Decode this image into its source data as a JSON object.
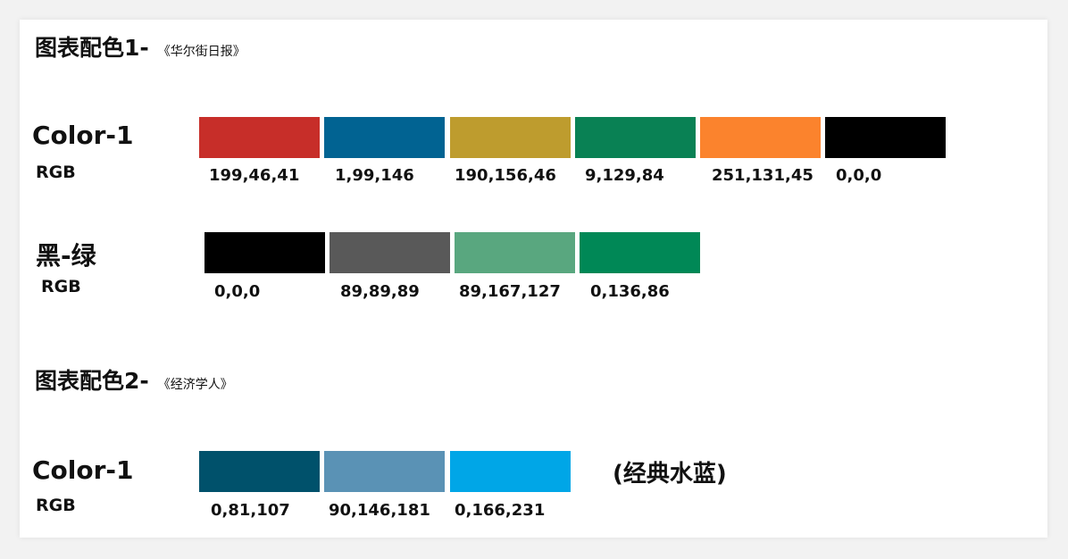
{
  "sections": [
    {
      "title": "图表配色1-",
      "source": "《华尔街日报》",
      "rows": [
        {
          "label": "Color-1",
          "rgb_label": "RGB",
          "swatches": [
            {
              "rgb": "199,46,41",
              "color": "#c72e29"
            },
            {
              "rgb": "1,99,146",
              "color": "#016392"
            },
            {
              "rgb": "190,156,46",
              "color": "#be9c2e"
            },
            {
              "rgb": "9,129,84",
              "color": "#098154"
            },
            {
              "rgb": "251,131,45",
              "color": "#fb832d"
            },
            {
              "rgb": "0,0,0",
              "color": "#000000"
            }
          ]
        },
        {
          "label": "黑-绿",
          "rgb_label": "RGB",
          "swatches": [
            {
              "rgb": "0,0,0",
              "color": "#000000"
            },
            {
              "rgb": "89,89,89",
              "color": "#595959"
            },
            {
              "rgb": "89,167,127",
              "color": "#59a77f"
            },
            {
              "rgb": "0,136,86",
              "color": "#008856"
            }
          ]
        }
      ]
    },
    {
      "title": "图表配色2-",
      "source": "《经济学人》",
      "rows": [
        {
          "label": "Color-1",
          "rgb_label": "RGB",
          "note": "(经典水蓝)",
          "swatches": [
            {
              "rgb": "0,81,107",
              "color": "#00516b"
            },
            {
              "rgb": "90,146,181",
              "color": "#5a92b5"
            },
            {
              "rgb": "0,166,231",
              "color": "#00a6e7"
            }
          ]
        }
      ]
    }
  ]
}
